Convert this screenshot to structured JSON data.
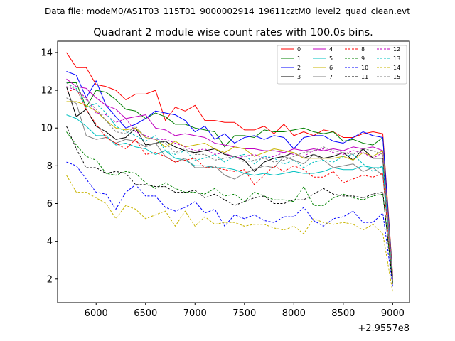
{
  "suptitle": "Data file: modeM0/AS1T03_115T01_9000002914_19611cztM0_level2_quad_clean.evt",
  "chart_data": {
    "type": "line",
    "title": "Quadrant 2 module wise count rates with 100.0s bins.",
    "xlabel": "",
    "ylabel": "",
    "x_offset_label": "+2.9557e8",
    "xlim": [
      5610,
      9170
    ],
    "ylim": [
      0.75,
      14.6
    ],
    "xticks": [
      6000,
      6500,
      7000,
      7500,
      8000,
      8500,
      9000
    ],
    "xtick_labels": [
      "6000",
      "6500",
      "7000",
      "7500",
      "8000",
      "8500",
      "9000"
    ],
    "yticks": [
      2,
      4,
      6,
      8,
      10,
      12,
      14
    ],
    "ytick_labels": [
      "2",
      "4",
      "6",
      "8",
      "10",
      "12",
      "14"
    ],
    "grid": false,
    "legend_position": "top-right",
    "x": [
      5700,
      5800,
      5900,
      6000,
      6100,
      6200,
      6300,
      6400,
      6500,
      6600,
      6700,
      6800,
      6900,
      7000,
      7100,
      7200,
      7300,
      7400,
      7500,
      7600,
      7700,
      7800,
      7900,
      8000,
      8100,
      8200,
      8300,
      8400,
      8500,
      8600,
      8700,
      8800,
      8900,
      9000
    ],
    "series": [
      {
        "name": "0",
        "color": "#ff0000",
        "dash": "solid",
        "values": [
          14.0,
          13.2,
          13.2,
          12.3,
          12.2,
          12.0,
          11.5,
          11.8,
          11.8,
          12.0,
          10.4,
          11.1,
          10.9,
          11.2,
          10.4,
          10.4,
          10.3,
          10.3,
          9.9,
          9.9,
          10.1,
          9.7,
          10.2,
          9.6,
          9.8,
          9.6,
          9.9,
          9.8,
          9.5,
          9.5,
          9.7,
          9.8,
          9.7,
          2.2
        ]
      },
      {
        "name": "1",
        "color": "#008000",
        "dash": "solid",
        "values": [
          12.4,
          12.4,
          11.1,
          12.0,
          11.9,
          11.5,
          11.0,
          10.9,
          10.5,
          10.8,
          10.6,
          10.2,
          10.2,
          10.0,
          9.9,
          9.8,
          9.0,
          9.6,
          9.6,
          9.5,
          9.9,
          9.8,
          9.8,
          9.9,
          10.0,
          9.8,
          9.7,
          9.8,
          9.3,
          9.4,
          9.2,
          9.1,
          9.5,
          2.1
        ]
      },
      {
        "name": "2",
        "color": "#0000ff",
        "dash": "solid",
        "values": [
          13.0,
          12.8,
          11.6,
          12.5,
          11.2,
          10.6,
          10.0,
          10.2,
          10.5,
          10.9,
          10.8,
          10.7,
          10.4,
          9.8,
          10.1,
          9.4,
          9.7,
          9.2,
          9.5,
          9.6,
          9.4,
          9.6,
          9.5,
          8.9,
          9.5,
          9.6,
          9.6,
          9.3,
          9.2,
          9.5,
          9.8,
          9.6,
          9.5,
          2.0
        ]
      },
      {
        "name": "3",
        "color": "#000000",
        "dash": "solid",
        "values": [
          12.2,
          10.6,
          11.0,
          10.1,
          9.8,
          9.4,
          9.5,
          10.0,
          9.1,
          9.2,
          9.3,
          9.0,
          8.8,
          8.7,
          8.8,
          8.9,
          8.6,
          8.5,
          8.3,
          7.7,
          8.2,
          8.4,
          8.5,
          8.7,
          8.4,
          8.6,
          8.4,
          8.5,
          8.7,
          8.3,
          8.9,
          8.4,
          8.4,
          1.9
        ]
      },
      {
        "name": "4",
        "color": "#c000c0",
        "dash": "solid",
        "values": [
          12.6,
          12.2,
          12.1,
          11.6,
          11.2,
          11.0,
          10.5,
          10.6,
          10.7,
          10.0,
          9.9,
          9.6,
          9.7,
          9.6,
          9.5,
          9.2,
          9.1,
          9.0,
          8.9,
          8.9,
          8.8,
          8.8,
          8.7,
          8.9,
          8.8,
          8.9,
          8.8,
          8.9,
          8.8,
          9.0,
          8.9,
          9.0,
          8.8,
          2.0
        ]
      },
      {
        "name": "5",
        "color": "#00c0c0",
        "dash": "solid",
        "values": [
          10.7,
          10.5,
          10.1,
          9.6,
          9.6,
          9.1,
          9.2,
          9.0,
          8.9,
          8.6,
          8.8,
          8.4,
          8.3,
          8.0,
          8.0,
          7.9,
          7.9,
          7.8,
          7.6,
          7.5,
          7.6,
          7.5,
          7.6,
          7.7,
          7.6,
          7.6,
          7.7,
          7.9,
          7.8,
          7.8,
          8.0,
          7.9,
          7.9,
          2.0
        ]
      },
      {
        "name": "6",
        "color": "#c8b400",
        "dash": "solid",
        "values": [
          11.4,
          11.4,
          11.2,
          10.9,
          10.4,
          10.0,
          9.9,
          10.0,
          9.5,
          9.4,
          9.0,
          9.3,
          9.0,
          9.1,
          9.2,
          8.9,
          8.7,
          9.0,
          8.9,
          8.5,
          8.7,
          8.9,
          8.8,
          8.7,
          8.4,
          8.4,
          8.4,
          8.4,
          8.5,
          8.3,
          8.7,
          8.5,
          8.8,
          2.0
        ]
      },
      {
        "name": "7",
        "color": "#808080",
        "dash": "solid",
        "values": [
          11.6,
          11.3,
          9.6,
          9.4,
          9.5,
          9.2,
          9.4,
          9.3,
          9.0,
          9.2,
          8.5,
          8.2,
          8.4,
          7.9,
          7.9,
          8.0,
          7.5,
          7.3,
          7.6,
          7.8,
          8.0,
          7.9,
          8.5,
          8.3,
          8.1,
          8.6,
          8.3,
          7.9,
          8.0,
          8.1,
          7.7,
          7.9,
          7.5,
          1.9
        ]
      },
      {
        "name": "8",
        "color": "#ff0000",
        "dash": "dashed",
        "values": [
          11.9,
          12.1,
          11.0,
          10.2,
          9.5,
          9.2,
          8.9,
          9.4,
          8.6,
          8.7,
          8.5,
          8.2,
          8.3,
          8.4,
          7.9,
          7.9,
          7.8,
          7.7,
          7.8,
          7.0,
          7.5,
          8.0,
          7.7,
          8.0,
          7.8,
          7.4,
          7.4,
          7.7,
          7.1,
          7.3,
          7.5,
          7.4,
          7.6,
          1.8
        ]
      },
      {
        "name": "9",
        "color": "#008000",
        "dash": "dashed",
        "values": [
          9.8,
          9.1,
          8.5,
          8.3,
          7.6,
          7.5,
          7.7,
          7.6,
          7.1,
          6.8,
          7.1,
          6.8,
          6.6,
          6.6,
          6.5,
          6.8,
          6.4,
          6.5,
          6.1,
          6.6,
          6.4,
          6.2,
          6.2,
          6.1,
          6.9,
          5.9,
          5.9,
          6.3,
          6.5,
          6.3,
          6.2,
          6.4,
          6.5,
          1.8
        ]
      },
      {
        "name": "10",
        "color": "#0000ff",
        "dash": "dashed",
        "values": [
          8.2,
          8.0,
          7.3,
          6.6,
          6.5,
          5.7,
          6.6,
          7.0,
          6.4,
          6.4,
          5.8,
          5.6,
          5.8,
          6.1,
          5.5,
          5.7,
          4.8,
          5.4,
          5.2,
          5.4,
          5.1,
          5.0,
          5.3,
          5.3,
          5.8,
          5.1,
          4.8,
          5.2,
          5.3,
          5.6,
          5.0,
          5.0,
          5.5,
          1.6
        ]
      },
      {
        "name": "11",
        "color": "#000000",
        "dash": "dashed",
        "values": [
          10.1,
          8.9,
          7.9,
          7.9,
          7.6,
          7.7,
          7.6,
          7.0,
          7.0,
          6.9,
          6.9,
          6.6,
          6.6,
          6.7,
          6.3,
          6.5,
          6.2,
          5.9,
          6.1,
          6.3,
          6.4,
          6.0,
          6.0,
          6.2,
          6.2,
          6.5,
          6.8,
          6.5,
          6.4,
          6.4,
          6.3,
          6.5,
          6.6,
          1.7
        ]
      },
      {
        "name": "12",
        "color": "#c000c0",
        "dash": "dashed",
        "values": [
          12.2,
          12.0,
          11.6,
          10.8,
          10.7,
          10.3,
          10.5,
          9.8,
          9.6,
          9.4,
          9.4,
          9.2,
          9.0,
          8.8,
          8.9,
          8.6,
          8.7,
          8.4,
          8.5,
          8.6,
          8.4,
          8.5,
          8.7,
          8.6,
          8.5,
          8.8,
          8.9,
          8.7,
          8.6,
          8.8,
          8.7,
          8.4,
          8.7,
          2.0
        ]
      },
      {
        "name": "13",
        "color": "#00c0c0",
        "dash": "dashed",
        "values": [
          12.4,
          12.1,
          11.1,
          11.3,
          10.8,
          10.1,
          9.8,
          9.6,
          9.3,
          9.6,
          8.8,
          8.6,
          8.8,
          8.3,
          8.4,
          8.6,
          8.2,
          8.5,
          8.6,
          8.1,
          8.5,
          8.4,
          8.1,
          8.3,
          7.9,
          8.2,
          8.3,
          8.2,
          8.5,
          8.6,
          8.1,
          7.7,
          8.0,
          2.0
        ]
      },
      {
        "name": "14",
        "color": "#c8b400",
        "dash": "dashed",
        "values": [
          7.5,
          6.6,
          6.6,
          6.3,
          6.0,
          5.2,
          5.9,
          5.7,
          5.2,
          5.4,
          5.6,
          4.8,
          5.6,
          4.8,
          5.3,
          4.9,
          5.0,
          5.0,
          4.8,
          4.9,
          4.9,
          4.7,
          4.6,
          4.8,
          4.4,
          5.2,
          5.0,
          4.9,
          5.0,
          4.9,
          4.6,
          4.9,
          4.4,
          1.3
        ]
      },
      {
        "name": "15",
        "color": "#808080",
        "dash": "dashed",
        "values": [
          12.4,
          12.0,
          11.5,
          11.0,
          10.4,
          9.8,
          9.7,
          10.1,
          9.5,
          9.4,
          9.2,
          8.7,
          8.9,
          8.6,
          8.6,
          8.3,
          8.4,
          8.5,
          8.2,
          8.3,
          8.4,
          8.2,
          8.3,
          8.5,
          8.7,
          8.8,
          9.0,
          8.8,
          8.7,
          8.6,
          8.9,
          8.8,
          8.6,
          1.9
        ]
      }
    ]
  }
}
